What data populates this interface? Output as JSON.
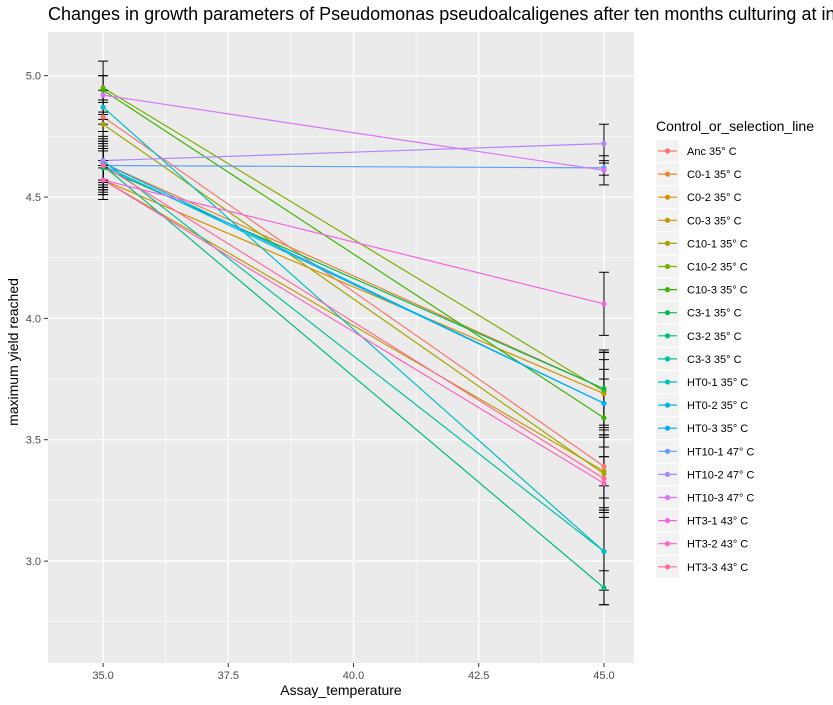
{
  "chart_data": {
    "type": "line",
    "title": "Changes in growth parameters of Pseudomonas pseudoalcaligenes after ten months culturing at increased temperatures",
    "xlabel": "Assay_temperature",
    "ylabel": "maximum yield reached",
    "xlim": [
      33.9,
      45.6
    ],
    "ylim": [
      2.58,
      5.18
    ],
    "x_ticks": [
      35.0,
      37.5,
      40.0,
      42.5,
      45.0
    ],
    "x_tick_labels": [
      "35.0",
      "37.5",
      "40.0",
      "42.5",
      "45.0"
    ],
    "y_ticks": [
      3.0,
      3.5,
      4.0,
      4.5,
      5.0
    ],
    "y_tick_labels": [
      "3.0",
      "3.5",
      "4.0",
      "4.5",
      "5.0"
    ],
    "grid": true,
    "legend_title": "Control_or_selection_line",
    "legend_position": "right",
    "x": [
      35,
      45
    ],
    "series": [
      {
        "name": "Anc 35° C",
        "color": "#F8766D",
        "values": [
          4.83,
          3.39
        ],
        "err": [
          0.06,
          0.08
        ]
      },
      {
        "name": "C0-1 35° C",
        "color": "#EA8331",
        "values": [
          4.64,
          3.71
        ],
        "err": [
          0.07,
          0.15
        ]
      },
      {
        "name": "C0-2 35° C",
        "color": "#D89000",
        "values": [
          4.57,
          3.69
        ],
        "err": [
          0.05,
          0.17
        ]
      },
      {
        "name": "C0-3 35° C",
        "color": "#C09B00",
        "values": [
          4.57,
          3.37
        ],
        "err": [
          0.06,
          0.15
        ]
      },
      {
        "name": "C10-1 35° C",
        "color": "#A3A500",
        "values": [
          4.8,
          3.36
        ],
        "err": [
          0.05,
          0.18
        ]
      },
      {
        "name": "C10-2 35° C",
        "color": "#7CAE00",
        "values": [
          4.95,
          3.7
        ],
        "err": [
          0.05,
          0.16
        ]
      },
      {
        "name": "C10-3 35° C",
        "color": "#39B600",
        "values": [
          4.94,
          3.59
        ],
        "err": [
          0.12,
          0.16
        ]
      },
      {
        "name": "C3-1 35° C",
        "color": "#00BB4E",
        "values": [
          4.62,
          3.71
        ],
        "err": [
          0.08,
          0.16
        ]
      },
      {
        "name": "C3-2 35° C",
        "color": "#00BF7D",
        "values": [
          4.63,
          2.89
        ],
        "err": [
          0.09,
          0.07
        ]
      },
      {
        "name": "C3-3 35° C",
        "color": "#00C1A3",
        "values": [
          4.65,
          3.04
        ],
        "err": [
          0.12,
          0.22
        ]
      },
      {
        "name": "HT0-1 35° C",
        "color": "#00BFC4",
        "values": [
          4.87,
          3.04
        ],
        "err": [
          0.07,
          0.16
        ]
      },
      {
        "name": "HT0-2 35° C",
        "color": "#00B9E3",
        "values": [
          4.63,
          3.65
        ],
        "err": [
          0.06,
          0.18
        ]
      },
      {
        "name": "HT0-3 35° C",
        "color": "#00ADFA",
        "values": [
          4.64,
          3.65
        ],
        "err": [
          0.09,
          0.14
        ]
      },
      {
        "name": "HT10-1 47° C",
        "color": "#619CFF",
        "values": [
          4.63,
          4.62
        ],
        "err": [
          0.1,
          0.03
        ]
      },
      {
        "name": "HT10-2 47° C",
        "color": "#AE87FF",
        "values": [
          4.65,
          4.72
        ],
        "err": [
          0.09,
          0.08
        ]
      },
      {
        "name": "HT10-3 47° C",
        "color": "#DB72FB",
        "values": [
          4.92,
          4.61
        ],
        "err": [
          0.08,
          0.06
        ]
      },
      {
        "name": "HT3-1 43° C",
        "color": "#F564E3",
        "values": [
          4.57,
          4.06
        ],
        "err": [
          0.08,
          0.13
        ]
      },
      {
        "name": "HT3-2 43° C",
        "color": "#FF61C3",
        "values": [
          4.57,
          3.32
        ],
        "err": [
          0.06,
          0.11
        ]
      },
      {
        "name": "HT3-3 43° C",
        "color": "#FF699C",
        "values": [
          4.63,
          3.34
        ],
        "err": [
          0.07,
          0.13
        ]
      }
    ]
  }
}
